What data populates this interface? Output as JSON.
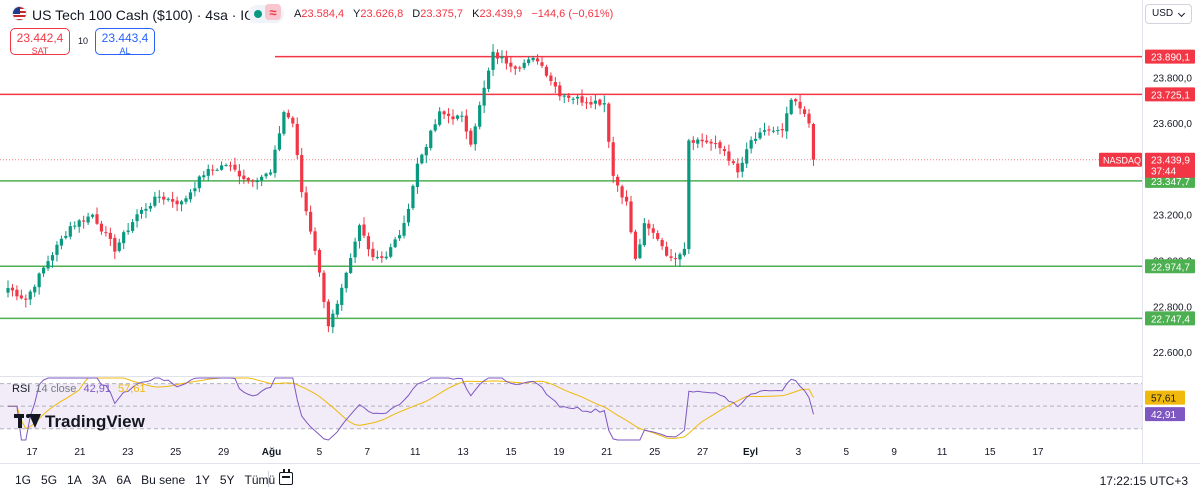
{
  "header": {
    "symbol_title": "US Tech 100 Cash ($100) · 4sa · IG",
    "ohlc": [
      {
        "key": "A",
        "value": "23.584,4"
      },
      {
        "key": "Y",
        "value": "23.626,8"
      },
      {
        "key": "D",
        "value": "23.375,7"
      },
      {
        "key": "K",
        "value": "23.439,9"
      },
      {
        "key": "",
        "value": "−144,6 (−0,61%)"
      }
    ]
  },
  "trade": {
    "sell_price": "23.442,4",
    "sell_label": "SAT",
    "spread": "10",
    "buy_price": "23.443,4",
    "buy_label": "AL"
  },
  "currency": "USD",
  "rsi_legend": {
    "name": "RSI",
    "params": "14 close",
    "value": "42,91",
    "ma_value": "57,61"
  },
  "branding": "TradingView",
  "bottom_bar": {
    "ranges": [
      "1G",
      "5G",
      "1A",
      "3A",
      "6A",
      "Bu sene",
      "1Y",
      "5Y",
      "Tümü"
    ],
    "clock": "17:22:15 UTC+3"
  },
  "colors": {
    "up": "#089981",
    "down": "#f23645",
    "resistance": "#f23645",
    "support": "#4caf50",
    "rsi_line": "#7e57c2",
    "rsi_ma": "#f0b90b",
    "rsi_band": "#ede7f6"
  },
  "chart_data": {
    "type": "candlestick",
    "price_axis": {
      "range": [
        22500,
        24050
      ],
      "ticks": [
        "23.800,0",
        "23.600,0",
        "23.400,0",
        "23.200,0",
        "23.000,0",
        "22.800,0",
        "22.600,0"
      ],
      "tick_values": [
        23800,
        23600,
        23400,
        23200,
        23000,
        22800,
        22600
      ]
    },
    "time_axis": {
      "labels": [
        "17",
        "21",
        "23",
        "25",
        "29",
        "Ağu",
        "5",
        "7",
        "11",
        "13",
        "15",
        "19",
        "21",
        "25",
        "27",
        "Eyl",
        "3",
        "5",
        "9",
        "11",
        "15",
        "17"
      ],
      "bold_labels": [
        "Ağu",
        "Eyl"
      ]
    },
    "horizontal_levels": [
      {
        "value": 23890.1,
        "label": "23.890,1",
        "kind": "resistance",
        "from_bar": 60
      },
      {
        "value": 23725.1,
        "label": "23.725,1",
        "kind": "resistance",
        "from_bar": 0
      },
      {
        "value": 23347.7,
        "label": "23.347,7",
        "kind": "support",
        "from_bar": 0
      },
      {
        "value": 22974.7,
        "label": "22.974,7",
        "kind": "support",
        "from_bar": 0
      },
      {
        "value": 22747.4,
        "label": "22.747,4",
        "kind": "support",
        "from_bar": 0
      }
    ],
    "last_price": {
      "value": 23439.9,
      "label": "23.439,9",
      "exchange": "NASDAQ",
      "countdown": "37:44"
    },
    "rsi": {
      "period": 14,
      "range": [
        20,
        75
      ],
      "upper": 70,
      "lower": 30,
      "value_label": "42,91",
      "ma_label": "57,61",
      "value": 42.91,
      "ma_value": 57.61
    },
    "waypoints": [
      [
        0,
        22880
      ],
      [
        4,
        22830
      ],
      [
        9,
        23000
      ],
      [
        14,
        23150
      ],
      [
        19,
        23200
      ],
      [
        24,
        23050
      ],
      [
        29,
        23200
      ],
      [
        34,
        23280
      ],
      [
        39,
        23250
      ],
      [
        44,
        23380
      ],
      [
        49,
        23420
      ],
      [
        54,
        23350
      ],
      [
        59,
        23380
      ],
      [
        62,
        23650
      ],
      [
        64,
        23600
      ],
      [
        66,
        23300
      ],
      [
        69,
        23050
      ],
      [
        72,
        22720
      ],
      [
        74,
        22800
      ],
      [
        77,
        23000
      ],
      [
        79,
        23150
      ],
      [
        82,
        23020
      ],
      [
        85,
        23020
      ],
      [
        89,
        23150
      ],
      [
        92,
        23420
      ],
      [
        97,
        23640
      ],
      [
        102,
        23620
      ],
      [
        104,
        23520
      ],
      [
        109,
        23900
      ],
      [
        114,
        23850
      ],
      [
        119,
        23880
      ],
      [
        124,
        23730
      ],
      [
        129,
        23700
      ],
      [
        134,
        23690
      ],
      [
        136,
        23370
      ],
      [
        139,
        23250
      ],
      [
        141,
        23000
      ],
      [
        143,
        23150
      ],
      [
        146,
        23100
      ],
      [
        149,
        23000
      ],
      [
        152,
        23060
      ],
      [
        153,
        23530
      ],
      [
        157,
        23520
      ],
      [
        161,
        23480
      ],
      [
        164,
        23380
      ],
      [
        167,
        23520
      ],
      [
        171,
        23570
      ],
      [
        174,
        23560
      ],
      [
        176,
        23700
      ],
      [
        178,
        23660
      ],
      [
        180,
        23600
      ],
      [
        181,
        23440
      ]
    ]
  }
}
